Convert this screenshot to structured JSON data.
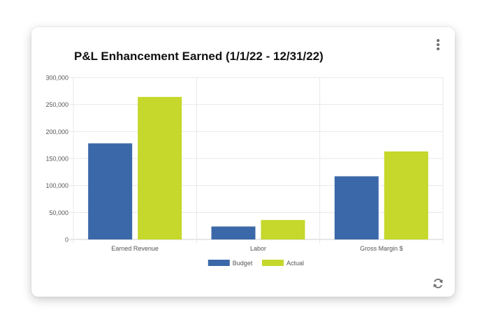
{
  "card": {
    "title": "P&L Enhancement Earned (1/1/22 - 12/31/22)",
    "icons": {
      "menu": "kebab-menu-icon",
      "refresh": "refresh-icon"
    }
  },
  "chart_data": {
    "type": "bar",
    "title": "P&L Enhancement Earned (1/1/22 - 12/31/22)",
    "xlabel": "",
    "ylabel": "",
    "categories": [
      "Earned Revenue",
      "Labor",
      "Gross Margin $"
    ],
    "series": [
      {
        "name": "Budget",
        "color": "#3b68a8",
        "values": [
          178000,
          24000,
          117000
        ]
      },
      {
        "name": "Actual",
        "color": "#c5d82b",
        "values": [
          264000,
          36000,
          163000
        ]
      }
    ],
    "ylim": [
      0,
      300000
    ],
    "yticks": [
      0,
      50000,
      100000,
      150000,
      200000,
      250000,
      300000
    ],
    "ytick_labels": [
      "0",
      "50,000",
      "100,000",
      "150,000",
      "200,000",
      "250,000",
      "300,000"
    ],
    "grid": true,
    "legend": "bottom-center"
  }
}
